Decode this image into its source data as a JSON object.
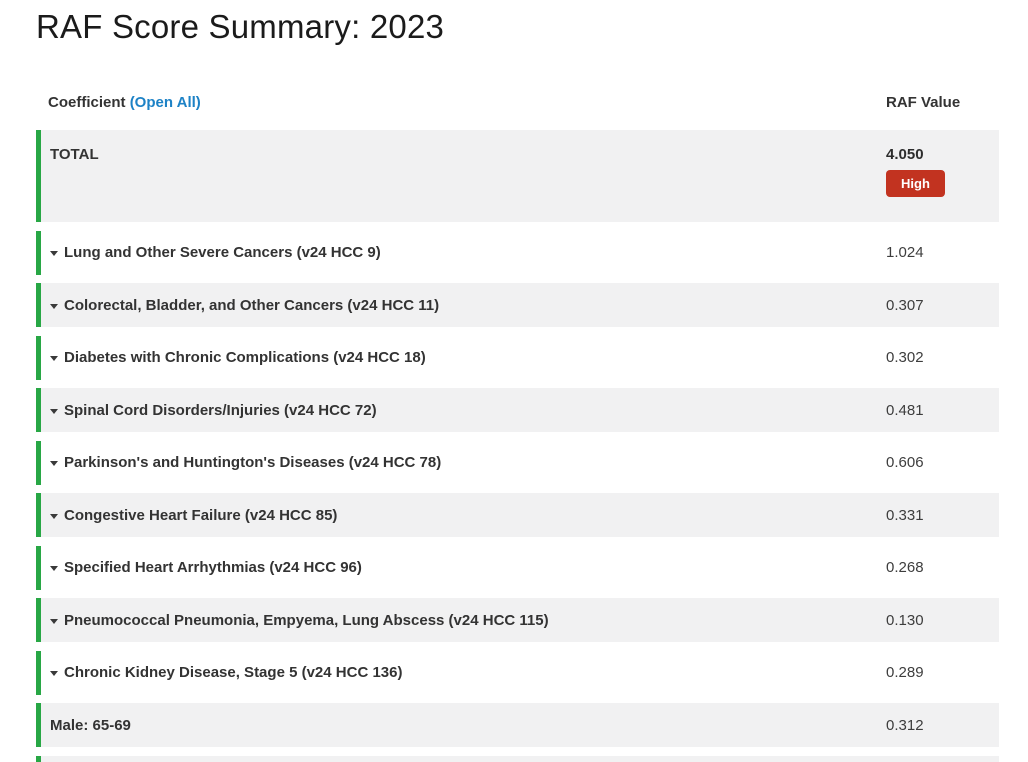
{
  "page": {
    "title": "RAF Score Summary: 2023"
  },
  "table": {
    "header": {
      "coefficient_label": "Coefficient",
      "open_all_label": "(Open All)",
      "raf_value_label": "RAF Value"
    },
    "total": {
      "label": "TOTAL",
      "value": "4.050",
      "badge_label": "High"
    },
    "rows": [
      {
        "label": "Lung and Other Severe Cancers (v24 HCC 9)",
        "value": "1.024",
        "expandable": true
      },
      {
        "label": "Colorectal, Bladder, and Other Cancers (v24 HCC 11)",
        "value": "0.307",
        "expandable": true
      },
      {
        "label": "Diabetes with Chronic Complications (v24 HCC 18)",
        "value": "0.302",
        "expandable": true
      },
      {
        "label": "Spinal Cord Disorders/Injuries (v24 HCC 72)",
        "value": "0.481",
        "expandable": true
      },
      {
        "label": "Parkinson's and Huntington's Diseases (v24 HCC 78)",
        "value": "0.606",
        "expandable": true
      },
      {
        "label": "Congestive Heart Failure (v24 HCC 85)",
        "value": "0.331",
        "expandable": true
      },
      {
        "label": "Specified Heart Arrhythmias (v24 HCC 96)",
        "value": "0.268",
        "expandable": true
      },
      {
        "label": "Pneumococcal Pneumonia, Empyema, Lung Abscess (v24 HCC 115)",
        "value": "0.130",
        "expandable": true
      },
      {
        "label": "Chronic Kidney Disease, Stage 5 (v24 HCC 136)",
        "value": "0.289",
        "expandable": true
      },
      {
        "label": "Male: 65-69",
        "value": "0.312",
        "expandable": false
      }
    ],
    "colors": {
      "accent_green": "#28a745",
      "badge_red": "#c23320",
      "link_blue": "#1d82c6",
      "row_alt_bg": "#f1f1f2",
      "title_text": "#1b1b1b",
      "body_text": "#333333"
    }
  }
}
